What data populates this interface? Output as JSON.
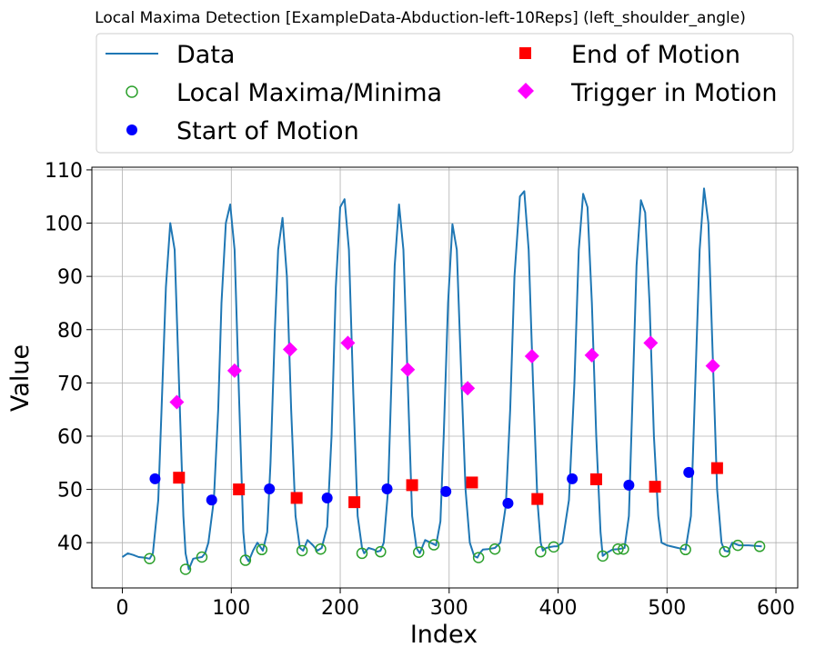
{
  "chart_data": {
    "type": "line",
    "title": "Local Maxima Detection [ExampleData-Abduction-left-10Reps] (left_shoulder_angle)",
    "xlabel": "Index",
    "ylabel": "Value",
    "xlim": [
      -28,
      620
    ],
    "ylim": [
      31.5,
      110.5
    ],
    "xticks": [
      0,
      100,
      200,
      300,
      400,
      500,
      600
    ],
    "yticks": [
      40,
      50,
      60,
      70,
      80,
      90,
      100,
      110
    ],
    "grid": true,
    "legend": {
      "placement": "top, above plot",
      "entries": [
        "Data",
        "Local Maxima/Minima",
        "Start of Motion",
        "End of Motion",
        "Trigger in Motion"
      ]
    },
    "colors": {
      "data": "#1f77b4",
      "extrema": "#2ca02c",
      "start": "#0000ff",
      "end": "#ff0000",
      "trigger": "#ff00ff"
    },
    "series": [
      {
        "name": "Data",
        "kind": "line",
        "x": [
          0,
          5,
          10,
          15,
          20,
          25,
          28,
          33,
          36,
          40,
          44,
          48,
          52,
          56,
          58,
          61,
          65,
          70,
          73,
          76,
          79,
          84,
          88,
          91,
          95,
          99,
          103,
          107,
          111,
          113,
          116,
          120,
          124,
          129,
          133,
          136,
          140,
          143,
          147,
          151,
          155,
          159,
          163,
          166,
          170,
          175,
          179,
          183,
          188,
          192,
          196,
          200,
          204,
          208,
          212,
          216,
          220,
          222,
          226,
          231,
          234,
          237,
          240,
          244,
          247,
          250,
          254,
          258,
          262,
          266,
          270,
          273,
          278,
          283,
          288,
          292,
          295,
          299,
          303,
          307,
          311,
          315,
          319,
          323,
          326,
          328,
          331,
          336,
          342,
          347,
          352,
          356,
          360,
          365,
          369,
          373,
          377,
          381,
          384,
          386,
          389,
          393,
          396,
          399,
          404,
          410,
          415,
          419,
          423,
          427,
          431,
          435,
          439,
          441,
          444,
          450,
          456,
          461,
          465,
          468,
          472,
          476,
          480,
          484,
          488,
          492,
          495,
          500,
          510,
          517,
          522,
          526,
          530,
          534,
          538,
          542,
          546,
          550,
          553,
          556,
          560,
          566,
          575,
          587
        ],
        "values": [
          37.3,
          38.0,
          37.7,
          37.3,
          37.2,
          37.0,
          38.0,
          48.0,
          65.0,
          88.0,
          100.0,
          95.0,
          70.0,
          45.0,
          38.0,
          35.0,
          37.0,
          37.2,
          37.3,
          38.0,
          40.0,
          48.0,
          65.0,
          85.0,
          100.0,
          103.5,
          95.0,
          68.0,
          42.0,
          37.5,
          36.5,
          38.5,
          40.0,
          38.5,
          42.0,
          55.0,
          80.0,
          95.0,
          101.0,
          90.0,
          65.0,
          45.0,
          39.0,
          38.5,
          40.5,
          39.5,
          38.5,
          39.0,
          43.0,
          60.0,
          88.0,
          103.0,
          104.5,
          95.0,
          68.0,
          45.0,
          39.0,
          38.0,
          39.0,
          38.7,
          38.3,
          38.5,
          40.0,
          50.0,
          70.0,
          92.0,
          103.5,
          95.0,
          70.0,
          45.0,
          39.0,
          38.0,
          40.5,
          40.0,
          39.5,
          44.0,
          60.0,
          85.0,
          99.8,
          95.0,
          72.0,
          50.0,
          40.0,
          37.5,
          37.2,
          38.0,
          38.7,
          38.8,
          39.0,
          40.0,
          47.0,
          65.0,
          90.0,
          105.0,
          106.0,
          95.0,
          70.0,
          48.0,
          40.0,
          38.5,
          39.0,
          39.2,
          39.3,
          39.3,
          40.0,
          48.0,
          70.0,
          95.0,
          105.5,
          103.0,
          85.0,
          60.0,
          42.0,
          37.5,
          38.0,
          38.7,
          38.8,
          39.0,
          45.0,
          65.0,
          92.0,
          104.3,
          102.0,
          85.0,
          60.0,
          45.0,
          40.0,
          39.5,
          39.0,
          38.7,
          45.0,
          70.0,
          95.0,
          106.5,
          100.0,
          75.0,
          50.0,
          40.0,
          38.5,
          38.3,
          40.0,
          39.5,
          39.5,
          39.3
        ]
      },
      {
        "name": "Local Maxima/Minima",
        "kind": "marker",
        "x": [
          25,
          58,
          73,
          113,
          128,
          165,
          182,
          220,
          237,
          272,
          286,
          327,
          342,
          384,
          396,
          441,
          455,
          460,
          517,
          553,
          565,
          585
        ],
        "values": [
          37.0,
          35.0,
          37.3,
          36.7,
          38.7,
          38.5,
          38.8,
          38.0,
          38.3,
          38.2,
          39.6,
          37.2,
          38.8,
          38.3,
          39.2,
          37.5,
          38.8,
          38.8,
          38.7,
          38.3,
          39.5,
          39.3
        ]
      },
      {
        "name": "Start of Motion",
        "kind": "marker",
        "x": [
          30,
          82,
          135,
          188,
          243,
          297,
          354,
          413,
          465,
          520
        ],
        "values": [
          52.0,
          48.0,
          50.1,
          48.4,
          50.1,
          49.6,
          47.4,
          52.0,
          50.8,
          53.2
        ]
      },
      {
        "name": "End of Motion",
        "kind": "marker",
        "x": [
          52,
          107,
          160,
          213,
          266,
          321,
          381,
          435,
          489,
          546
        ],
        "values": [
          52.2,
          50.0,
          48.4,
          47.6,
          50.8,
          51.3,
          48.2,
          51.9,
          50.5,
          54.0
        ]
      },
      {
        "name": "Trigger in Motion",
        "kind": "marker",
        "x": [
          50,
          103,
          154,
          207,
          262,
          317,
          376,
          431,
          485,
          542
        ],
        "values": [
          66.4,
          72.3,
          76.3,
          77.5,
          72.5,
          69.0,
          75.0,
          75.2,
          77.5,
          73.2
        ]
      }
    ]
  }
}
